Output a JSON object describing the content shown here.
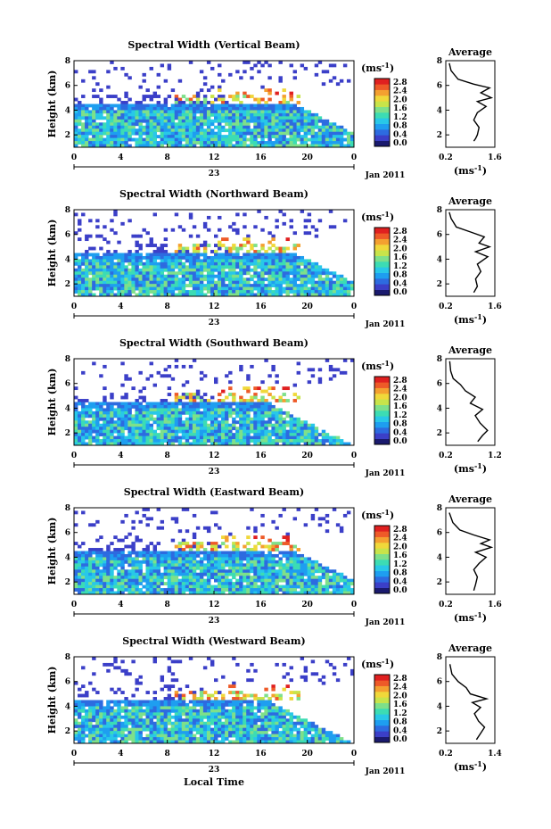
{
  "figure": {
    "xlabel": "Local Time",
    "date_label": "Jan 2011",
    "day_label": "23",
    "colorbar_unit": "(ms",
    "colorbar_unit_exp": "-1",
    "avg_xunit": "(ms",
    "avg_xunit_exp": "-1",
    "avg_title": "Average",
    "ylabel": "Height (km)",
    "colorbar_ticks": [
      "0.0",
      "0.4",
      "0.8",
      "1.2",
      "1.6",
      "2.0",
      "2.4",
      "2.8"
    ],
    "colorscale": [
      "#1a1a6e",
      "#3b3fc8",
      "#2d6be0",
      "#1e9ef0",
      "#28c8e8",
      "#3cdcb4",
      "#7ee08a",
      "#c8e44a",
      "#f0d83a",
      "#f4a030",
      "#ee5a28",
      "#e02020"
    ]
  },
  "chart_data": [
    {
      "type": "heatmap",
      "title": "Spectral Width (Vertical Beam)",
      "x_range": [
        0,
        24
      ],
      "y_range": [
        1,
        8
      ],
      "x_ticks": [
        "0",
        "4",
        "8",
        "12",
        "16",
        "20",
        "0"
      ],
      "y_ticks": [
        "2",
        "4",
        "6",
        "8"
      ],
      "profile": {
        "x_ticks": [
          "0.2",
          "1.6"
        ],
        "x_range": [
          0.2,
          1.6
        ],
        "y_range": [
          1,
          8
        ],
        "y_ticks": [
          "2",
          "4",
          "6",
          "8"
        ],
        "points": [
          [
            1.0,
            1.5
          ],
          [
            1.05,
            1.7
          ],
          [
            1.1,
            2.0
          ],
          [
            1.15,
            2.6
          ],
          [
            1.0,
            3.2
          ],
          [
            1.1,
            3.8
          ],
          [
            1.35,
            4.3
          ],
          [
            1.1,
            4.7
          ],
          [
            1.5,
            5.0
          ],
          [
            1.2,
            5.4
          ],
          [
            1.45,
            5.8
          ],
          [
            1.0,
            6.1
          ],
          [
            0.55,
            6.5
          ],
          [
            0.35,
            7.2
          ],
          [
            0.3,
            7.8
          ]
        ]
      }
    },
    {
      "type": "heatmap",
      "title": "Spectral Width (Northward Beam)",
      "x_range": [
        0,
        24
      ],
      "y_range": [
        1,
        8
      ],
      "x_ticks": [
        "0",
        "4",
        "8",
        "12",
        "16",
        "20",
        "0"
      ],
      "y_ticks": [
        "2",
        "4",
        "6",
        "8"
      ],
      "profile": {
        "x_ticks": [
          "0.2",
          "1.6"
        ],
        "x_range": [
          0.2,
          1.6
        ],
        "y_range": [
          1,
          8
        ],
        "y_ticks": [
          "2",
          "4",
          "6",
          "8"
        ],
        "points": [
          [
            1.0,
            1.3
          ],
          [
            1.1,
            1.8
          ],
          [
            1.05,
            2.4
          ],
          [
            1.2,
            3.0
          ],
          [
            1.1,
            3.6
          ],
          [
            1.4,
            4.2
          ],
          [
            1.05,
            4.6
          ],
          [
            1.45,
            5.0
          ],
          [
            1.15,
            5.3
          ],
          [
            1.3,
            5.8
          ],
          [
            0.9,
            6.2
          ],
          [
            0.5,
            6.6
          ],
          [
            0.35,
            7.3
          ],
          [
            0.3,
            7.8
          ]
        ]
      }
    },
    {
      "type": "heatmap",
      "title": "Spectral Width (Southward Beam)",
      "x_range": [
        0,
        24
      ],
      "y_range": [
        1,
        8
      ],
      "x_ticks": [
        "0",
        "4",
        "8",
        "12",
        "16",
        "20",
        "0"
      ],
      "y_ticks": [
        "2",
        "4",
        "6",
        "8"
      ],
      "profile": {
        "x_ticks": [
          "0.2",
          "1.2"
        ],
        "x_range": [
          0.2,
          1.2
        ],
        "y_range": [
          1,
          8
        ],
        "y_ticks": [
          "2",
          "4",
          "6",
          "8"
        ],
        "points": [
          [
            0.85,
            1.3
          ],
          [
            0.95,
            1.8
          ],
          [
            1.05,
            2.2
          ],
          [
            0.9,
            2.8
          ],
          [
            0.8,
            3.4
          ],
          [
            0.95,
            3.9
          ],
          [
            0.7,
            4.4
          ],
          [
            0.8,
            4.9
          ],
          [
            0.6,
            5.4
          ],
          [
            0.5,
            5.9
          ],
          [
            0.35,
            6.4
          ],
          [
            0.3,
            7.0
          ],
          [
            0.28,
            7.8
          ]
        ]
      }
    },
    {
      "type": "heatmap",
      "title": "Spectral Width (Eastward Beam)",
      "x_range": [
        0,
        24
      ],
      "y_range": [
        1,
        8
      ],
      "x_ticks": [
        "0",
        "4",
        "8",
        "12",
        "16",
        "20",
        "0"
      ],
      "y_ticks": [
        "2",
        "4",
        "6",
        "8"
      ],
      "profile": {
        "x_ticks": [
          "0.2",
          "1.6"
        ],
        "x_range": [
          0.2,
          1.6
        ],
        "y_range": [
          1,
          8
        ],
        "y_ticks": [
          "2",
          "4",
          "6",
          "8"
        ],
        "points": [
          [
            1.0,
            1.3
          ],
          [
            1.05,
            1.8
          ],
          [
            1.1,
            2.4
          ],
          [
            1.0,
            3.0
          ],
          [
            1.15,
            3.5
          ],
          [
            1.35,
            4.0
          ],
          [
            1.05,
            4.4
          ],
          [
            1.5,
            4.8
          ],
          [
            1.2,
            5.1
          ],
          [
            1.45,
            5.4
          ],
          [
            1.0,
            5.8
          ],
          [
            0.6,
            6.2
          ],
          [
            0.4,
            6.8
          ],
          [
            0.3,
            7.6
          ]
        ]
      }
    },
    {
      "type": "heatmap",
      "title": "Spectral Width (Westward Beam)",
      "x_range": [
        0,
        24
      ],
      "y_range": [
        1,
        8
      ],
      "x_ticks": [
        "0",
        "4",
        "8",
        "12",
        "16",
        "20",
        "0"
      ],
      "y_ticks": [
        "2",
        "4",
        "6",
        "8"
      ],
      "profile": {
        "x_ticks": [
          "0.2",
          "1.4"
        ],
        "x_range": [
          0.2,
          1.4
        ],
        "y_range": [
          1,
          8
        ],
        "y_ticks": [
          "2",
          "4",
          "6",
          "8"
        ],
        "points": [
          [
            0.95,
            1.3
          ],
          [
            1.05,
            1.8
          ],
          [
            1.15,
            2.3
          ],
          [
            1.0,
            2.8
          ],
          [
            0.9,
            3.4
          ],
          [
            1.05,
            3.9
          ],
          [
            0.85,
            4.3
          ],
          [
            1.2,
            4.6
          ],
          [
            0.8,
            5.0
          ],
          [
            0.7,
            5.5
          ],
          [
            0.5,
            6.0
          ],
          [
            0.35,
            6.6
          ],
          [
            0.3,
            7.4
          ]
        ]
      }
    }
  ]
}
